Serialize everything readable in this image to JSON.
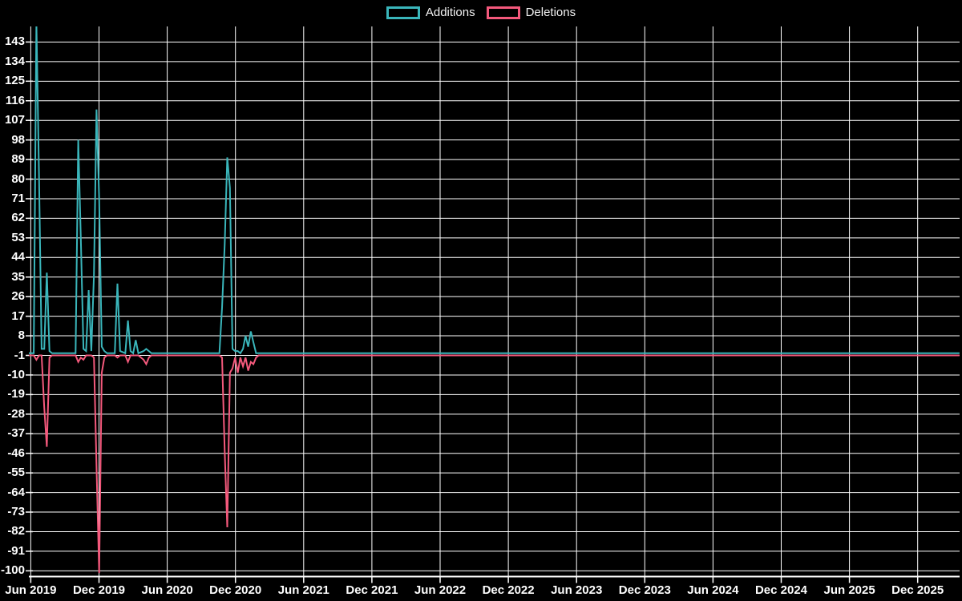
{
  "page": {
    "background_color": "#000000",
    "text_color": "#ffffff",
    "grid_color": "#ffffff"
  },
  "chart_data": {
    "type": "line",
    "title": "",
    "x_unit": "week",
    "grid": true,
    "legend_position": "top-center",
    "xlabel": "",
    "ylabel": "",
    "y_axis_ticks": [
      143,
      134,
      125,
      116,
      107,
      98,
      89,
      80,
      71,
      62,
      53,
      44,
      35,
      26,
      17,
      8,
      -1,
      -10,
      -19,
      -28,
      -37,
      -46,
      -55,
      -64,
      -73,
      -82,
      -91,
      -100
    ],
    "x_axis_tick_labels": [
      "Jun 2019",
      "Dec 2019",
      "Jun 2020",
      "Dec 2020",
      "Jun 2021",
      "Dec 2021",
      "Jun 2022",
      "Dec 2022",
      "Jun 2023",
      "Dec 2023",
      "Jun 2024",
      "Dec 2024",
      "Jun 2025",
      "Dec 2025"
    ],
    "x": [
      "2019-05-24",
      "2019-06-09",
      "2019-06-16",
      "2019-06-23",
      "2019-06-30",
      "2019-07-07",
      "2019-07-14",
      "2019-07-21",
      "2019-07-28",
      "2019-09-29",
      "2019-10-06",
      "2019-10-13",
      "2019-10-20",
      "2019-10-27",
      "2019-11-03",
      "2019-11-10",
      "2019-11-17",
      "2019-11-24",
      "2019-12-01",
      "2019-12-08",
      "2019-12-15",
      "2019-12-22",
      "2020-01-12",
      "2020-01-19",
      "2020-01-26",
      "2020-02-09",
      "2020-02-16",
      "2020-02-23",
      "2020-03-01",
      "2020-03-08",
      "2020-03-15",
      "2020-03-29",
      "2020-04-05",
      "2020-04-12",
      "2020-04-19",
      "2020-10-18",
      "2020-10-25",
      "2020-11-01",
      "2020-11-08",
      "2020-11-15",
      "2020-11-22",
      "2020-11-29",
      "2020-12-06",
      "2020-12-13",
      "2020-12-20",
      "2020-12-27",
      "2021-01-03",
      "2021-01-10",
      "2021-01-17",
      "2021-01-24",
      "2021-01-31",
      "2026-03-22"
    ],
    "series": [
      {
        "name": "Additions",
        "color": "#3ab6bb",
        "values": [
          0,
          0,
          152,
          81,
          2,
          2,
          37,
          1,
          0,
          0,
          98,
          53,
          2,
          1,
          29,
          1,
          36,
          112,
          71,
          3,
          1,
          0,
          0,
          32,
          1,
          0,
          15,
          1,
          0,
          6,
          0,
          1,
          2,
          1,
          0,
          0,
          21,
          50,
          90,
          76,
          2,
          1,
          1,
          0,
          2,
          8,
          3,
          10,
          5,
          0,
          0,
          0
        ]
      },
      {
        "name": "Deletions",
        "color": "#f4597c",
        "values": [
          -1,
          -1,
          -3,
          -1,
          -1,
          -25,
          -43,
          -2,
          -1,
          -1,
          -4,
          -2,
          -3,
          -1,
          -1,
          -1,
          -2,
          -52,
          -101,
          -9,
          -2,
          -1,
          -1,
          -2,
          -1,
          -1,
          -4,
          -1,
          -1,
          -1,
          -1,
          -3,
          -5,
          -2,
          -1,
          -1,
          -2,
          -45,
          -80,
          -9,
          -7,
          -2,
          -9,
          -2,
          -6,
          -2,
          -8,
          -4,
          -5,
          -2,
          -1,
          -1
        ]
      }
    ]
  },
  "legend": {
    "items": [
      {
        "label": "Additions",
        "color": "#3ab6bb"
      },
      {
        "label": "Deletions",
        "color": "#f4597c"
      }
    ]
  }
}
